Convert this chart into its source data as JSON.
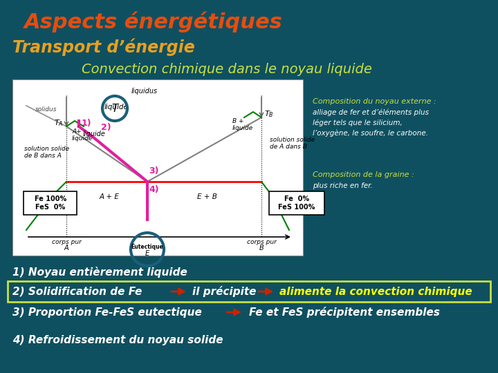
{
  "background_color": "#0f5060",
  "title1": "Aspects énergétiques",
  "title1_color": "#e84c0e",
  "title2": "Transport d’énergie",
  "title2_color": "#e8a020",
  "title3": "Convection chimique dans le noyau liquide",
  "title3_color": "#c8e040",
  "line1": "1) Noyau entièrement liquide",
  "line1_color": "#ffffff",
  "line2_part1": "2) Solidification de Fe",
  "line2_part2": "il précipite",
  "line2_part3": "alimente la convection chimique",
  "line2_color": "#ffffff",
  "line2_bold_color": "#ffff00",
  "line3_part1": "3) Proportion Fe-FeS eutectique",
  "line3_part2": "Fe et FeS précipitent ensembles",
  "line3_color": "#ffffff",
  "line4": "4) Refroidissement du noyau solide",
  "line4_color": "#ffffff",
  "right_text1_title": "Composition du noyau externe :",
  "right_text1_body": "alliage de fer et d’éléments plus\nléger tels que le silicium,\nl’oxygène, le soufre, le carbone.",
  "right_text2_title": "Composition de la graine :",
  "right_text2_body": "plus riche en fer.",
  "right_text_color": "#c8e040",
  "right_text_body_color": "#ffffff",
  "box2_border_color": "#c8e040",
  "arrow_color": "#cc2200"
}
